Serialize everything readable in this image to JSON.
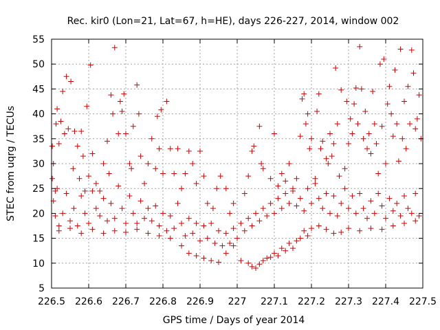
{
  "chart_data": {
    "type": "scatter",
    "title": "Rec. kir0 (Lon=21, Lat=67, h=HE), days 226-227, 2014, window 002",
    "xlabel": "GPS time / Days of year 2014",
    "ylabel": "STEC from uqrg / TECUs",
    "xlim": [
      226.5,
      227.5
    ],
    "ylim": [
      5,
      55
    ],
    "x_ticks": [
      "226.5",
      "226.6",
      "226.7",
      "226.8",
      "226.9",
      "227",
      "227.1",
      "227.2",
      "227.3",
      "227.4",
      "227.5"
    ],
    "y_ticks": [
      "5",
      "10",
      "15",
      "20",
      "25",
      "30",
      "35",
      "40",
      "45",
      "50",
      "55"
    ],
    "grid": true,
    "marker": "plus",
    "color": "#cc0000",
    "series": [
      {
        "name": "STEC",
        "points": [
          [
            226.502,
            33.5
          ],
          [
            226.505,
            30
          ],
          [
            226.51,
            24.5
          ],
          [
            226.512,
            38
          ],
          [
            226.515,
            41
          ],
          [
            226.52,
            34
          ],
          [
            226.525,
            38.5
          ],
          [
            226.53,
            44.5
          ],
          [
            226.535,
            36
          ],
          [
            226.54,
            47.5
          ],
          [
            226.545,
            37
          ],
          [
            226.552,
            46.5
          ],
          [
            226.558,
            29
          ],
          [
            226.562,
            36.5
          ],
          [
            226.57,
            33.5
          ],
          [
            226.575,
            27
          ],
          [
            226.58,
            36.5
          ],
          [
            226.585,
            31.5
          ],
          [
            226.59,
            24.5
          ],
          [
            226.595,
            41.5
          ],
          [
            226.6,
            27.5
          ],
          [
            226.605,
            49.8
          ],
          [
            226.61,
            32
          ],
          [
            226.62,
            26
          ],
          [
            226.63,
            24.5
          ],
          [
            226.64,
            30
          ],
          [
            226.65,
            34.5
          ],
          [
            226.655,
            28
          ],
          [
            226.66,
            43.8
          ],
          [
            226.665,
            40
          ],
          [
            226.67,
            53.3
          ],
          [
            226.68,
            36
          ],
          [
            226.685,
            42.5
          ],
          [
            226.69,
            40.5
          ],
          [
            226.695,
            44
          ],
          [
            226.7,
            36
          ],
          [
            226.71,
            30
          ],
          [
            226.715,
            29
          ],
          [
            226.72,
            37.5
          ],
          [
            226.73,
            45.8
          ],
          [
            226.735,
            40
          ],
          [
            226.74,
            31.5
          ],
          [
            226.75,
            26
          ],
          [
            226.76,
            30
          ],
          [
            226.77,
            35
          ],
          [
            226.78,
            29
          ],
          [
            226.785,
            39.5
          ],
          [
            226.79,
            33
          ],
          [
            226.795,
            40.8
          ],
          [
            226.8,
            28
          ],
          [
            226.81,
            42.5
          ],
          [
            226.82,
            33
          ],
          [
            226.83,
            28
          ],
          [
            226.84,
            33
          ],
          [
            226.85,
            25
          ],
          [
            226.86,
            28
          ],
          [
            226.87,
            32.5
          ],
          [
            226.88,
            30
          ],
          [
            226.89,
            26
          ],
          [
            226.9,
            32.5
          ],
          [
            226.91,
            27.5
          ],
          [
            226.92,
            22
          ],
          [
            226.935,
            21
          ],
          [
            226.945,
            25
          ],
          [
            226.955,
            27.5
          ],
          [
            226.97,
            25
          ],
          [
            226.98,
            20
          ],
          [
            226.99,
            22
          ],
          [
            227.02,
            24
          ],
          [
            227.03,
            27.5
          ],
          [
            227.04,
            32.5
          ],
          [
            227.045,
            33.5
          ],
          [
            227.06,
            37.5
          ],
          [
            227.065,
            30
          ],
          [
            227.07,
            29
          ],
          [
            227.09,
            27
          ],
          [
            227.1,
            36
          ],
          [
            227.11,
            25.5
          ],
          [
            227.12,
            28
          ],
          [
            227.13,
            26.5
          ],
          [
            227.14,
            30
          ],
          [
            227.15,
            25
          ],
          [
            227.16,
            27
          ],
          [
            227.17,
            35.5
          ],
          [
            227.175,
            43
          ],
          [
            227.18,
            44
          ],
          [
            227.185,
            38
          ],
          [
            227.19,
            40
          ],
          [
            227.195,
            33
          ],
          [
            227.2,
            35
          ],
          [
            227.21,
            27
          ],
          [
            227.215,
            40.5
          ],
          [
            227.22,
            44
          ],
          [
            227.225,
            33
          ],
          [
            227.23,
            34.5
          ],
          [
            227.24,
            31
          ],
          [
            227.245,
            30
          ],
          [
            227.25,
            36
          ],
          [
            227.255,
            31.5
          ],
          [
            227.26,
            34
          ],
          [
            227.265,
            49.2
          ],
          [
            227.27,
            38
          ],
          [
            227.275,
            27.5
          ],
          [
            227.28,
            44.8
          ],
          [
            227.29,
            29
          ],
          [
            227.295,
            42.5
          ],
          [
            227.3,
            34
          ],
          [
            227.305,
            39
          ],
          [
            227.31,
            36
          ],
          [
            227.315,
            42
          ],
          [
            227.32,
            45.2
          ],
          [
            227.325,
            38
          ],
          [
            227.33,
            53.5
          ],
          [
            227.335,
            45
          ],
          [
            227.34,
            35
          ],
          [
            227.345,
            40.5
          ],
          [
            227.35,
            33
          ],
          [
            227.355,
            36
          ],
          [
            227.36,
            32
          ],
          [
            227.365,
            44.5
          ],
          [
            227.37,
            38
          ],
          [
            227.375,
            34
          ],
          [
            227.38,
            28
          ],
          [
            227.385,
            50
          ],
          [
            227.39,
            37.5
          ],
          [
            227.395,
            51
          ],
          [
            227.4,
            30
          ],
          [
            227.405,
            42
          ],
          [
            227.41,
            45.5
          ],
          [
            227.415,
            40
          ],
          [
            227.42,
            35.5
          ],
          [
            227.425,
            48.8
          ],
          [
            227.43,
            38
          ],
          [
            227.435,
            30.5
          ],
          [
            227.44,
            53
          ],
          [
            227.445,
            35
          ],
          [
            227.45,
            42.5
          ],
          [
            227.455,
            33
          ],
          [
            227.46,
            45.5
          ],
          [
            227.465,
            38
          ],
          [
            227.47,
            52.8
          ],
          [
            227.475,
            48.2
          ],
          [
            227.48,
            37
          ],
          [
            227.485,
            39
          ],
          [
            227.49,
            43.8
          ],
          [
            227.495,
            35
          ],
          [
            226.502,
            27
          ],
          [
            226.505,
            22.5
          ],
          [
            226.51,
            19.5
          ],
          [
            226.515,
            25
          ],
          [
            226.52,
            17.5
          ],
          [
            226.53,
            20
          ],
          [
            226.54,
            24
          ],
          [
            226.55,
            18.5
          ],
          [
            226.56,
            21
          ],
          [
            226.57,
            17.5
          ],
          [
            226.58,
            23.5
          ],
          [
            226.59,
            20
          ],
          [
            226.6,
            18
          ],
          [
            226.61,
            24.5
          ],
          [
            226.62,
            21
          ],
          [
            226.63,
            19.5
          ],
          [
            226.64,
            23
          ],
          [
            226.65,
            18.5
          ],
          [
            226.66,
            22
          ],
          [
            226.67,
            19
          ],
          [
            226.68,
            25.5
          ],
          [
            226.69,
            21
          ],
          [
            226.7,
            18
          ],
          [
            226.71,
            23.5
          ],
          [
            226.72,
            20
          ],
          [
            226.73,
            18
          ],
          [
            226.74,
            22.5
          ],
          [
            226.75,
            19
          ],
          [
            226.76,
            21
          ],
          [
            226.77,
            18.5
          ],
          [
            226.78,
            21.5
          ],
          [
            226.79,
            17.5
          ],
          [
            226.8,
            20
          ],
          [
            226.81,
            16.5
          ],
          [
            226.82,
            19.5
          ],
          [
            226.83,
            17
          ],
          [
            226.84,
            22
          ],
          [
            226.85,
            18
          ],
          [
            226.86,
            15.5
          ],
          [
            226.87,
            19
          ],
          [
            226.88,
            16
          ],
          [
            226.89,
            18
          ],
          [
            226.9,
            14.5
          ],
          [
            226.91,
            17.5
          ],
          [
            226.92,
            15
          ],
          [
            226.93,
            18
          ],
          [
            226.94,
            14
          ],
          [
            226.95,
            16.5
          ],
          [
            226.96,
            13.5
          ],
          [
            226.97,
            16
          ],
          [
            226.98,
            14
          ],
          [
            226.99,
            17
          ],
          [
            227.0,
            15
          ],
          [
            227.01,
            18
          ],
          [
            227.02,
            16.5
          ],
          [
            227.03,
            19
          ],
          [
            227.04,
            17.5
          ],
          [
            227.05,
            20
          ],
          [
            227.06,
            18.5
          ],
          [
            227.07,
            21
          ],
          [
            227.08,
            19.5
          ],
          [
            227.09,
            22
          ],
          [
            227.1,
            20
          ],
          [
            227.11,
            23
          ],
          [
            227.12,
            21
          ],
          [
            227.13,
            24
          ],
          [
            227.14,
            22
          ],
          [
            227.15,
            24.5
          ],
          [
            227.16,
            21.5
          ],
          [
            227.17,
            23
          ],
          [
            227.18,
            20.5
          ],
          [
            227.19,
            25
          ],
          [
            227.2,
            22
          ],
          [
            227.21,
            26
          ],
          [
            227.22,
            23
          ],
          [
            227.23,
            21
          ],
          [
            227.24,
            24
          ],
          [
            227.25,
            20
          ],
          [
            227.26,
            23.5
          ],
          [
            227.27,
            19.5
          ],
          [
            227.28,
            22
          ],
          [
            227.29,
            25
          ],
          [
            227.3,
            21
          ],
          [
            227.31,
            23.5
          ],
          [
            227.32,
            20
          ],
          [
            227.33,
            24
          ],
          [
            227.34,
            21
          ],
          [
            227.35,
            19
          ],
          [
            227.36,
            22.5
          ],
          [
            227.37,
            20
          ],
          [
            227.38,
            24
          ],
          [
            227.39,
            21.5
          ],
          [
            227.4,
            19
          ],
          [
            227.41,
            23
          ],
          [
            227.42,
            20.5
          ],
          [
            227.43,
            22
          ],
          [
            227.44,
            19.5
          ],
          [
            227.45,
            23.5
          ],
          [
            227.46,
            21
          ],
          [
            227.47,
            20
          ],
          [
            227.48,
            24
          ],
          [
            227.49,
            19.5
          ],
          [
            226.52,
            16.5
          ],
          [
            226.55,
            17
          ],
          [
            226.58,
            16
          ],
          [
            226.61,
            16.8
          ],
          [
            226.64,
            16
          ],
          [
            226.67,
            16.5
          ],
          [
            226.7,
            16.2
          ],
          [
            226.73,
            16.8
          ],
          [
            226.76,
            16
          ],
          [
            226.79,
            15.5
          ],
          [
            226.82,
            15
          ],
          [
            226.85,
            13.5
          ],
          [
            226.87,
            12
          ],
          [
            226.89,
            11.5
          ],
          [
            226.91,
            11
          ],
          [
            226.93,
            10.5
          ],
          [
            226.95,
            10.2
          ],
          [
            226.97,
            12
          ],
          [
            226.99,
            13.5
          ],
          [
            227.01,
            10.5
          ],
          [
            227.03,
            10
          ],
          [
            227.04,
            9.3
          ],
          [
            227.05,
            9
          ],
          [
            227.06,
            9.8
          ],
          [
            227.07,
            10.5
          ],
          [
            227.08,
            11
          ],
          [
            227.09,
            11.2
          ],
          [
            227.1,
            12
          ],
          [
            227.11,
            11.5
          ],
          [
            227.12,
            13
          ],
          [
            227.13,
            12.5
          ],
          [
            227.14,
            14
          ],
          [
            227.15,
            13
          ],
          [
            227.16,
            14.5
          ],
          [
            227.17,
            15
          ],
          [
            227.18,
            16.5
          ],
          [
            227.19,
            15.5
          ],
          [
            227.2,
            17
          ],
          [
            227.22,
            17.5
          ],
          [
            227.24,
            16.8
          ],
          [
            227.26,
            16
          ],
          [
            227.28,
            16.2
          ],
          [
            227.3,
            17
          ],
          [
            227.33,
            16.5
          ],
          [
            227.36,
            17
          ],
          [
            227.39,
            16.8
          ],
          [
            227.42,
            17.5
          ],
          [
            227.45,
            18
          ],
          [
            227.48,
            18.5
          ]
        ]
      }
    ]
  }
}
